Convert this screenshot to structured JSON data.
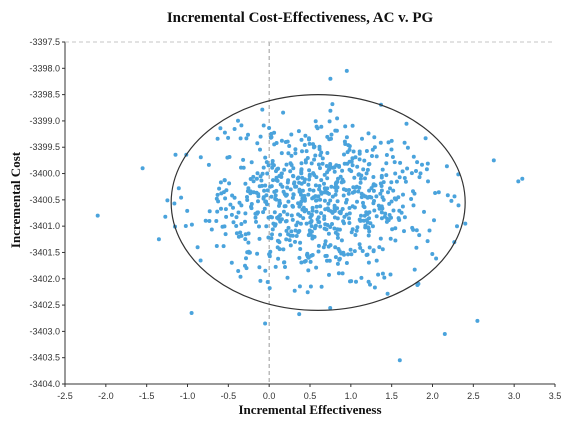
{
  "chart_data": {
    "type": "scatter",
    "title": "Incremental Cost-Effectiveness, AC v. PG",
    "xlabel": "Incremental Effectiveness",
    "ylabel": "Incremental Cost",
    "xlim": [
      -2.5,
      3.5
    ],
    "ylim": [
      -3404.0,
      -3397.5
    ],
    "x_ticks": [
      "-2.5",
      "-2.0",
      "-1.5",
      "-1.0",
      "-0.5",
      "0.0",
      "0.5",
      "1.0",
      "1.5",
      "2.0",
      "2.5",
      "3.0",
      "3.5"
    ],
    "y_ticks": [
      "-3397.5",
      "-3398.0",
      "-3398.5",
      "-3399.0",
      "-3399.5",
      "-3400.0",
      "-3400.5",
      "-3401.0",
      "-3401.5",
      "-3402.0",
      "-3402.5",
      "-3403.0",
      "-3403.5",
      "-3404.0"
    ],
    "reference_lines": {
      "x": 0.0,
      "y": -3397.5,
      "style": "dashed"
    },
    "ellipse": {
      "center": [
        0.6,
        -3400.55
      ],
      "x_radius": 1.8,
      "y_radius": 2.05
    },
    "point_count": 800,
    "outliers": [
      [
        -2.1,
        -3400.8
      ],
      [
        -1.55,
        -3399.9
      ],
      [
        3.05,
        -3400.15
      ],
      [
        3.1,
        -3400.1
      ],
      [
        2.75,
        -3399.75
      ],
      [
        2.55,
        -3402.8
      ],
      [
        2.15,
        -3403.05
      ],
      [
        1.6,
        -3403.55
      ],
      [
        0.95,
        -3398.05
      ],
      [
        0.75,
        -3398.2
      ],
      [
        -0.05,
        -3402.85
      ],
      [
        2.3,
        -3401.0
      ],
      [
        -1.35,
        -3401.25
      ],
      [
        -0.95,
        -3402.65
      ]
    ],
    "colors": {
      "points": "#4aa3dc",
      "ellipse": "#333333",
      "reference": "#9a9a9a",
      "axis": "#333333"
    },
    "grid": false,
    "legend": "none"
  }
}
